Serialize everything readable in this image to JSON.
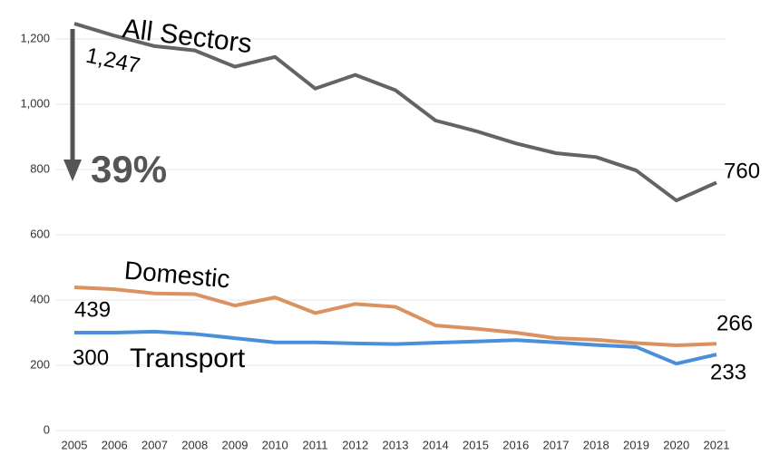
{
  "chart_data": {
    "type": "line",
    "x": [
      2005,
      2006,
      2007,
      2008,
      2009,
      2010,
      2011,
      2012,
      2013,
      2014,
      2015,
      2016,
      2017,
      2018,
      2019,
      2020,
      2021
    ],
    "xlim": [
      2005,
      2021
    ],
    "ylim": [
      0,
      1300
    ],
    "yticks": [
      0,
      200,
      400,
      600,
      800,
      {
        "value": 1000,
        "label": "1,000"
      },
      {
        "value": 1200,
        "label": "1,200"
      }
    ],
    "grid": true,
    "series": [
      {
        "name": "All Sectors",
        "color": "#646464",
        "values": [
          1247,
          1210,
          1178,
          1165,
          1115,
          1145,
          1048,
          1090,
          1043,
          950,
          918,
          880,
          850,
          838,
          797,
          705,
          760
        ],
        "value_labels": [
          "1,247",
          null,
          null,
          null,
          null,
          null,
          null,
          null,
          null,
          null,
          null,
          null,
          null,
          null,
          null,
          null,
          "760"
        ]
      },
      {
        "name": "Domestic",
        "color": "#da9260",
        "values": [
          439,
          433,
          420,
          418,
          383,
          408,
          360,
          388,
          379,
          322,
          312,
          300,
          283,
          278,
          268,
          261,
          266
        ]
      },
      {
        "name": "Transport",
        "color": "#4a8fdc",
        "values": [
          300,
          300,
          303,
          296,
          283,
          270,
          270,
          267,
          265,
          269,
          273,
          277,
          270,
          262,
          256,
          205,
          233
        ]
      }
    ],
    "annotations": [
      {
        "text": "39%"
      }
    ]
  }
}
